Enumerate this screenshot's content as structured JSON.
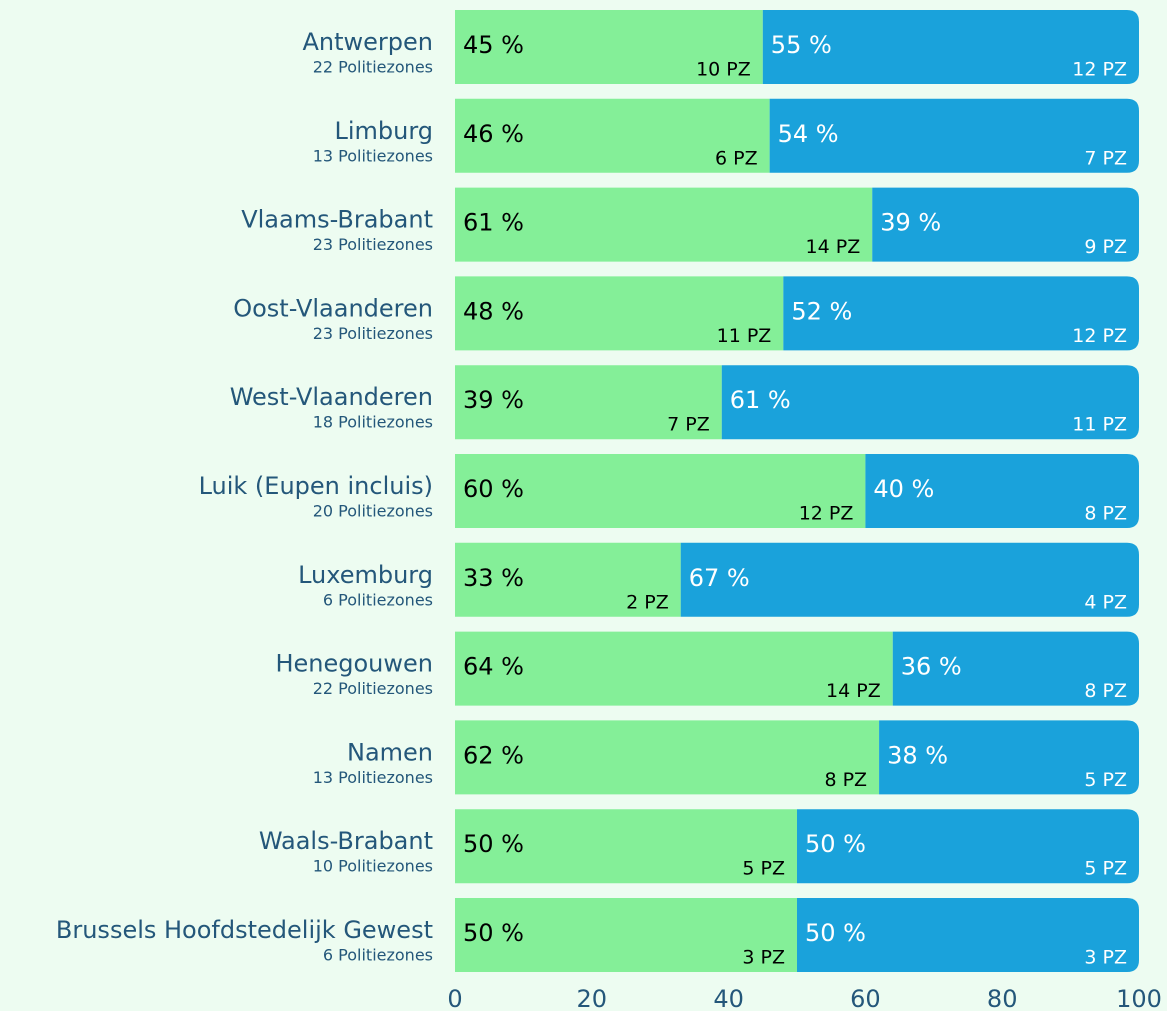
{
  "chart_data": {
    "type": "stacked-bar-horizontal",
    "categories": [
      "Antwerpen",
      "Limburg",
      "Vlaams-Brabant",
      "Oost-Vlaanderen",
      "West-Vlaanderen",
      "Luik (Eupen incluis)",
      "Luxemburg",
      "Henegouwen",
      "Namen",
      "Waals-Brabant",
      "Brussels Hoofdstedelijk Gewest"
    ],
    "subtitles": [
      "22 Politiezones",
      "13 Politiezones",
      "23 Politiezones",
      "23 Politiezones",
      "18 Politiezones",
      "20 Politiezones",
      "6 Politiezones",
      "22 Politiezones",
      "13 Politiezones",
      "10 Politiezones",
      "6 Politiezones"
    ],
    "series": [
      {
        "color": "#84ef98",
        "label_color": "#000000",
        "values": [
          45,
          46,
          61,
          48,
          39,
          60,
          33,
          64,
          62,
          50,
          50
        ],
        "value_labels": [
          "45 %",
          "46 %",
          "61 %",
          "48 %",
          "39 %",
          "60 %",
          "33 %",
          "64 %",
          "62 %",
          "50 %",
          "50 %"
        ],
        "pz_labels": [
          "10 PZ",
          "6 PZ",
          "14 PZ",
          "11 PZ",
          "7 PZ",
          "12 PZ",
          "2 PZ",
          "14 PZ",
          "8 PZ",
          "5 PZ",
          "3 PZ"
        ]
      },
      {
        "color": "#1aa2db",
        "label_color": "#ffffff",
        "values": [
          55,
          54,
          39,
          52,
          61,
          40,
          67,
          36,
          38,
          50,
          50
        ],
        "value_labels": [
          "55 %",
          "54 %",
          "39 %",
          "52 %",
          "61 %",
          "40 %",
          "67 %",
          "36 %",
          "38 %",
          "50 %",
          "50 %"
        ],
        "pz_labels": [
          "12 PZ",
          "7 PZ",
          "9 PZ",
          "12 PZ",
          "11 PZ",
          "8 PZ",
          "4 PZ",
          "8 PZ",
          "5 PZ",
          "5 PZ",
          "3 PZ"
        ]
      }
    ],
    "xlim": [
      0,
      100
    ],
    "xticks": [
      0,
      20,
      40,
      60,
      80,
      100
    ]
  }
}
